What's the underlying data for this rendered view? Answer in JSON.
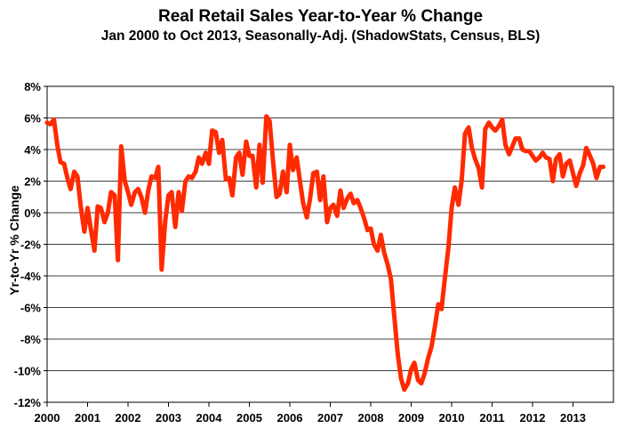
{
  "chart_data": {
    "type": "line",
    "title": "Real Retail Sales Year-to-Year % Change",
    "subtitle": "Jan 2000 to Oct 2013, Seasonally-Adj. (ShadowStats, Census, BLS)",
    "xlabel": "",
    "ylabel": "Yr-to-Yr % Change",
    "xlim": [
      2000,
      2014
    ],
    "ylim": [
      -12,
      8
    ],
    "x_ticks": [
      "2000",
      "2001",
      "2002",
      "2003",
      "2004",
      "2005",
      "2006",
      "2007",
      "2008",
      "2009",
      "2010",
      "2011",
      "2012",
      "2013"
    ],
    "y_ticks": [
      "8%",
      "6%",
      "4%",
      "2%",
      "0%",
      "-2%",
      "-4%",
      "-6%",
      "-8%",
      "-10%",
      "-12%"
    ],
    "grid": "horizontal",
    "legend": "none",
    "line_color": "#ff2a00",
    "series": [
      {
        "x": [
          2000.0,
          2000.08,
          2000.17,
          2000.25,
          2000.33,
          2000.42,
          2000.5,
          2000.58,
          2000.67,
          2000.75,
          2000.83,
          2000.92,
          2001.0,
          2001.08,
          2001.17,
          2001.25,
          2001.33,
          2001.42,
          2001.5,
          2001.58,
          2001.67,
          2001.75,
          2001.83,
          2001.92,
          2002.0,
          2002.08,
          2002.17,
          2002.25,
          2002.33,
          2002.42,
          2002.5,
          2002.58,
          2002.67,
          2002.75,
          2002.83,
          2002.92,
          2003.0,
          2003.08,
          2003.17,
          2003.25,
          2003.33,
          2003.42,
          2003.5,
          2003.58,
          2003.67,
          2003.75,
          2003.83,
          2003.92,
          2004.0,
          2004.08,
          2004.17,
          2004.25,
          2004.33,
          2004.42,
          2004.5,
          2004.58,
          2004.67,
          2004.75,
          2004.83,
          2004.92,
          2005.0,
          2005.08,
          2005.17,
          2005.25,
          2005.33,
          2005.42,
          2005.5,
          2005.58,
          2005.67,
          2005.75,
          2005.83,
          2005.92,
          2006.0,
          2006.08,
          2006.17,
          2006.25,
          2006.33,
          2006.42,
          2006.5,
          2006.58,
          2006.67,
          2006.75,
          2006.83,
          2006.92,
          2007.0,
          2007.08,
          2007.17,
          2007.25,
          2007.33,
          2007.42,
          2007.5,
          2007.58,
          2007.67,
          2007.75,
          2007.83,
          2007.92,
          2008.0,
          2008.08,
          2008.17,
          2008.25,
          2008.33,
          2008.42,
          2008.5,
          2008.58,
          2008.67,
          2008.75,
          2008.83,
          2008.92,
          2009.0,
          2009.08,
          2009.17,
          2009.25,
          2009.33,
          2009.42,
          2009.5,
          2009.58,
          2009.67,
          2009.75,
          2009.83,
          2009.92,
          2010.0,
          2010.08,
          2010.17,
          2010.25,
          2010.33,
          2010.42,
          2010.5,
          2010.58,
          2010.67,
          2010.75,
          2010.83,
          2010.92,
          2011.0,
          2011.08,
          2011.17,
          2011.25,
          2011.33,
          2011.42,
          2011.5,
          2011.58,
          2011.67,
          2011.75,
          2011.83,
          2011.92,
          2012.0,
          2012.08,
          2012.17,
          2012.25,
          2012.33,
          2012.42,
          2012.5,
          2012.58,
          2012.67,
          2012.75,
          2012.83,
          2012.92,
          2013.0,
          2013.08,
          2013.17,
          2013.25,
          2013.33,
          2013.42,
          2013.5,
          2013.58,
          2013.67,
          2013.75
        ],
        "y": [
          5.7,
          5.6,
          5.9,
          4.3,
          3.2,
          3.1,
          2.2,
          1.5,
          2.6,
          2.3,
          0.4,
          -1.2,
          0.3,
          -1.0,
          -2.4,
          0.4,
          0.3,
          -0.6,
          0.0,
          1.3,
          1.1,
          -3.0,
          4.2,
          2.0,
          1.3,
          0.5,
          1.3,
          1.5,
          1.0,
          0.0,
          1.4,
          2.3,
          2.2,
          2.9,
          -3.6,
          -0.5,
          1.1,
          1.3,
          -0.9,
          1.3,
          0.1,
          2.0,
          2.3,
          2.2,
          2.6,
          3.5,
          3.1,
          3.8,
          3.1,
          5.2,
          5.1,
          3.8,
          4.6,
          2.1,
          2.2,
          1.1,
          3.5,
          3.8,
          2.4,
          4.5,
          3.6,
          3.6,
          1.6,
          4.3,
          1.9,
          6.1,
          5.8,
          3.4,
          1.0,
          1.2,
          2.6,
          1.3,
          4.3,
          2.7,
          3.5,
          2.0,
          0.6,
          -0.3,
          0.9,
          2.5,
          2.6,
          0.8,
          2.3,
          -0.6,
          0.3,
          0.5,
          -0.2,
          1.4,
          0.3,
          0.9,
          1.2,
          0.6,
          0.8,
          0.3,
          -0.3,
          -1.1,
          -1.0,
          -2.0,
          -2.4,
          -1.4,
          -2.5,
          -3.3,
          -4.2,
          -6.5,
          -9.0,
          -10.5,
          -11.2,
          -10.8,
          -9.9,
          -9.5,
          -10.6,
          -10.8,
          -10.2,
          -9.2,
          -8.5,
          -7.3,
          -5.8,
          -6.1,
          -4.2,
          -2.2,
          0.3,
          1.6,
          0.5,
          2.1,
          5.0,
          5.4,
          4.1,
          3.4,
          2.8,
          1.6,
          5.3,
          5.7,
          5.4,
          5.2,
          5.5,
          5.9,
          4.3,
          3.7,
          4.2,
          4.7,
          4.7,
          4.0,
          3.9,
          3.9,
          3.6,
          3.3,
          3.5,
          3.8,
          3.5,
          3.4,
          2.0,
          3.4,
          3.7,
          2.3,
          3.1,
          3.3,
          2.5,
          1.7,
          2.5,
          3.0,
          4.1,
          3.6,
          3.1,
          2.2,
          2.9,
          2.9
        ]
      }
    ]
  }
}
